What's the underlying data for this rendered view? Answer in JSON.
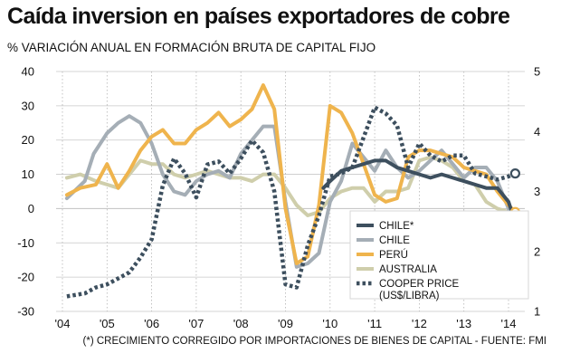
{
  "header": {
    "title": "Caída inversion en países exportadores de cobre",
    "subtitle": "% VARIACIÓN ANUAL EN FORMACIÓN BRUTA DE CAPITAL FIJO"
  },
  "footnote": "(*) CRECIMIENTO CORREGIDO POR IMPORTACIONES DE BIENES DE CAPITAL - FUENTE: FMI",
  "colors": {
    "chile_adj": "#3d4f5e",
    "chile": "#a5aeb6",
    "peru": "#efb44d",
    "australia": "#cfceab",
    "copper": "#3d4f5e"
  },
  "chart_data": {
    "type": "line",
    "title": "Caída inversion en países exportadores de cobre",
    "ylabel": "% variación anual",
    "y2label": "US$/libra",
    "x_range": [
      2004.0,
      2014.3
    ],
    "ylim": [
      -30,
      40
    ],
    "y2lim": [
      1,
      5
    ],
    "grid": {
      "horizontal": true,
      "vertical_dotted": true
    },
    "legend_position": "bottom-center",
    "x_tick_values": [
      2004,
      2005,
      2006,
      2007,
      2008,
      2009,
      2010,
      2011,
      2012,
      2013,
      2014
    ],
    "x_tick_labels": [
      "'04",
      "'05",
      "'06",
      "'07",
      "'08",
      "'09",
      "'10",
      "'11",
      "'12",
      "'13",
      "'14"
    ],
    "y_ticks": [
      40,
      30,
      20,
      10,
      0,
      -10,
      -20,
      -30
    ],
    "y_tick_labels": [
      "40",
      "30",
      "20",
      "10",
      "0",
      "-10",
      "-20",
      "-30"
    ],
    "y2_ticks": [
      5,
      4,
      3,
      2,
      1
    ],
    "y2_tick_labels": [
      "5",
      "4",
      "3",
      "2",
      "1"
    ],
    "series": [
      {
        "name": "CHILE*",
        "key": "chile_adj",
        "axis": "left",
        "style": "solid",
        "x": [
          2009.85,
          2010.0,
          2010.25,
          2010.5,
          2010.75,
          2011.0,
          2011.25,
          2011.5,
          2011.75,
          2012.0,
          2012.25,
          2012.5,
          2012.75,
          2013.0,
          2013.25,
          2013.5,
          2013.75,
          2014.0,
          2014.15
        ],
        "y": [
          6,
          8,
          11,
          12,
          13,
          14,
          14,
          12,
          11,
          10,
          9,
          10,
          9,
          8,
          7,
          6,
          6,
          2,
          -4
        ]
      },
      {
        "name": "CHILE",
        "key": "chile",
        "axis": "left",
        "style": "solid",
        "x": [
          2004.1,
          2004.5,
          2004.7,
          2005.0,
          2005.25,
          2005.5,
          2005.75,
          2006.0,
          2006.25,
          2006.5,
          2006.75,
          2007.0,
          2007.25,
          2007.5,
          2007.75,
          2008.0,
          2008.25,
          2008.5,
          2008.75,
          2009.0,
          2009.25,
          2009.5,
          2009.75,
          2010.0,
          2010.25,
          2010.5,
          2010.75,
          2011.0,
          2011.25,
          2011.5,
          2011.75,
          2012.0,
          2012.25,
          2012.5,
          2012.75,
          2013.0,
          2013.25,
          2013.5,
          2013.75,
          2014.0,
          2014.15
        ],
        "y": [
          3,
          8,
          16,
          22,
          25,
          27,
          25,
          19,
          10,
          5,
          4,
          8,
          10,
          11,
          9,
          16,
          20,
          24,
          24,
          2,
          -17,
          -16,
          -13,
          2,
          8,
          19,
          15,
          11,
          17,
          12,
          9,
          11,
          14,
          17,
          13,
          9,
          12,
          12,
          8,
          0,
          -11
        ]
      },
      {
        "name": "PERÚ",
        "key": "peru",
        "axis": "left",
        "style": "solid",
        "x": [
          2004.1,
          2004.4,
          2004.75,
          2005.0,
          2005.25,
          2005.5,
          2005.75,
          2006.0,
          2006.25,
          2006.5,
          2006.75,
          2007.0,
          2007.25,
          2007.5,
          2007.75,
          2008.0,
          2008.25,
          2008.5,
          2008.75,
          2009.0,
          2009.25,
          2009.5,
          2009.75,
          2010.0,
          2010.25,
          2010.5,
          2010.75,
          2011.0,
          2011.25,
          2011.5,
          2011.75,
          2012.0,
          2012.25,
          2012.5,
          2012.75,
          2013.0,
          2013.25,
          2013.5,
          2013.75,
          2014.0,
          2014.15
        ],
        "y": [
          4,
          6,
          7,
          13,
          6,
          11,
          17,
          21,
          23,
          19,
          19,
          23,
          25,
          28,
          24,
          26,
          29,
          36,
          29,
          0,
          -16,
          -14,
          1,
          30,
          28,
          22,
          13,
          4,
          2,
          3,
          15,
          17,
          17,
          16,
          15,
          12,
          11,
          10,
          5,
          1,
          -1
        ]
      },
      {
        "name": "AUSTRALIA",
        "key": "australia",
        "axis": "left",
        "style": "solid",
        "x": [
          2004.1,
          2004.4,
          2004.75,
          2005.0,
          2005.25,
          2005.5,
          2005.75,
          2006.0,
          2006.25,
          2006.5,
          2006.75,
          2007.0,
          2007.25,
          2007.5,
          2007.75,
          2008.0,
          2008.25,
          2008.5,
          2008.75,
          2009.0,
          2009.25,
          2009.5,
          2009.75,
          2010.0,
          2010.25,
          2010.5,
          2010.75,
          2011.0,
          2011.25,
          2011.5,
          2011.75,
          2012.0,
          2012.25,
          2012.5,
          2012.75,
          2013.0,
          2013.25,
          2013.5,
          2013.75,
          2014.0,
          2014.15
        ],
        "y": [
          9,
          10,
          8,
          7,
          6,
          10,
          14,
          13,
          13,
          10,
          9,
          10,
          11,
          10,
          9,
          9,
          8,
          10,
          10,
          6,
          1,
          -2,
          -1,
          3,
          5,
          6,
          6,
          2,
          5,
          5,
          6,
          14,
          15,
          14,
          12,
          8,
          7,
          2,
          0,
          -1,
          -2
        ]
      },
      {
        "name": "COOPER PRICE (US$/LIBRA)",
        "key": "copper",
        "axis": "right",
        "style": "dotted",
        "x": [
          2004.1,
          2004.5,
          2004.75,
          2005.0,
          2005.25,
          2005.5,
          2005.75,
          2006.0,
          2006.25,
          2006.5,
          2006.75,
          2007.0,
          2007.25,
          2007.5,
          2007.75,
          2008.0,
          2008.25,
          2008.5,
          2008.75,
          2009.0,
          2009.25,
          2009.5,
          2009.75,
          2010.0,
          2010.25,
          2010.5,
          2010.75,
          2011.0,
          2011.25,
          2011.5,
          2011.75,
          2012.0,
          2012.25,
          2012.5,
          2012.75,
          2013.0,
          2013.25,
          2013.5,
          2013.75,
          2014.0,
          2014.15
        ],
        "y": [
          1.25,
          1.3,
          1.4,
          1.45,
          1.55,
          1.65,
          1.9,
          2.2,
          3.1,
          3.55,
          3.3,
          2.9,
          3.45,
          3.5,
          3.3,
          3.55,
          3.85,
          3.65,
          3.0,
          1.45,
          1.4,
          2.1,
          2.6,
          3.25,
          3.3,
          3.4,
          3.9,
          4.4,
          4.3,
          4.1,
          3.4,
          3.8,
          3.6,
          3.5,
          3.6,
          3.6,
          3.3,
          3.25,
          3.2,
          3.25,
          3.3
        ]
      }
    ]
  }
}
